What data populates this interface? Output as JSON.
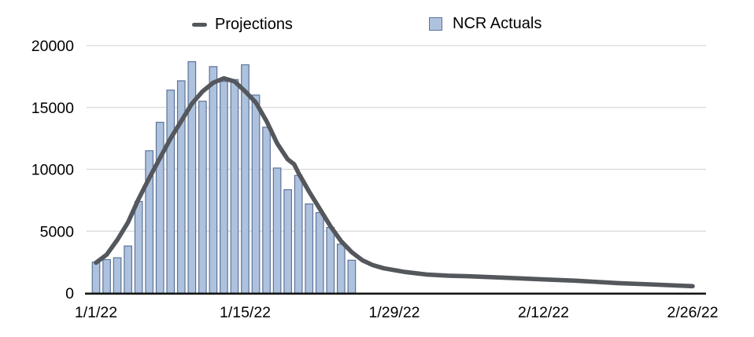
{
  "legend": {
    "projections_label": "Projections",
    "actuals_label": "NCR Actuals"
  },
  "colors": {
    "bar_fill": "#AEC2DE",
    "bar_border": "#5C7399",
    "line": "#54575C",
    "gridline": "#D7D7D7",
    "axis": "#161616",
    "text": "#000000",
    "background": "#FFFFFF"
  },
  "chart_data": {
    "type": "bar",
    "title": "",
    "xlabel": "",
    "ylabel": "",
    "ylim": [
      0,
      20000
    ],
    "y_ticks": [
      0,
      5000,
      10000,
      15000,
      20000
    ],
    "x_tick_labels": [
      "1/1/22",
      "1/15/22",
      "1/29/22",
      "2/12/22",
      "2/26/22"
    ],
    "x_tick_days": [
      0,
      14,
      28,
      42,
      56
    ],
    "grid": "horizontal gridlines only",
    "legend_position": "top",
    "series": [
      {
        "name": "NCR Actuals",
        "type": "bar",
        "dates": [
          "1/1/22",
          "1/2/22",
          "1/3/22",
          "1/4/22",
          "1/5/22",
          "1/6/22",
          "1/7/22",
          "1/8/22",
          "1/9/22",
          "1/10/22",
          "1/11/22",
          "1/12/22",
          "1/13/22",
          "1/14/22",
          "1/15/22",
          "1/16/22",
          "1/17/22",
          "1/18/22",
          "1/19/22",
          "1/20/22",
          "1/21/22",
          "1/22/22",
          "1/23/22",
          "1/24/22",
          "1/25/22"
        ],
        "days": [
          0,
          1,
          2,
          3,
          4,
          5,
          6,
          7,
          8,
          9,
          10,
          11,
          12,
          13,
          14,
          15,
          16,
          17,
          18,
          19,
          20,
          21,
          22,
          23,
          24
        ],
        "values": [
          2500,
          2700,
          2850,
          3800,
          7400,
          11500,
          13800,
          16400,
          17150,
          18700,
          15500,
          18300,
          17100,
          17250,
          18450,
          16000,
          13400,
          10100,
          8350,
          9500,
          7200,
          6500,
          5300,
          3950,
          2650
        ]
      },
      {
        "name": "Projections",
        "type": "line",
        "days": [
          0,
          1,
          2,
          3,
          4,
          5,
          6,
          7,
          8,
          9,
          10,
          11,
          12,
          13,
          14,
          15,
          16,
          17,
          18,
          18.6,
          19,
          20,
          21,
          22,
          23,
          24,
          25,
          26,
          27,
          28,
          29,
          30,
          31,
          33,
          35,
          38,
          42,
          45,
          49,
          52,
          56
        ],
        "values": [
          2450,
          3100,
          4300,
          5700,
          7600,
          9300,
          10900,
          12500,
          13900,
          15300,
          16300,
          17000,
          17350,
          17100,
          16300,
          15400,
          13900,
          12100,
          10800,
          10400,
          9700,
          8200,
          6800,
          5400,
          4200,
          3300,
          2650,
          2250,
          2000,
          1850,
          1700,
          1600,
          1500,
          1400,
          1350,
          1250,
          1100,
          1000,
          800,
          700,
          550
        ]
      }
    ]
  }
}
